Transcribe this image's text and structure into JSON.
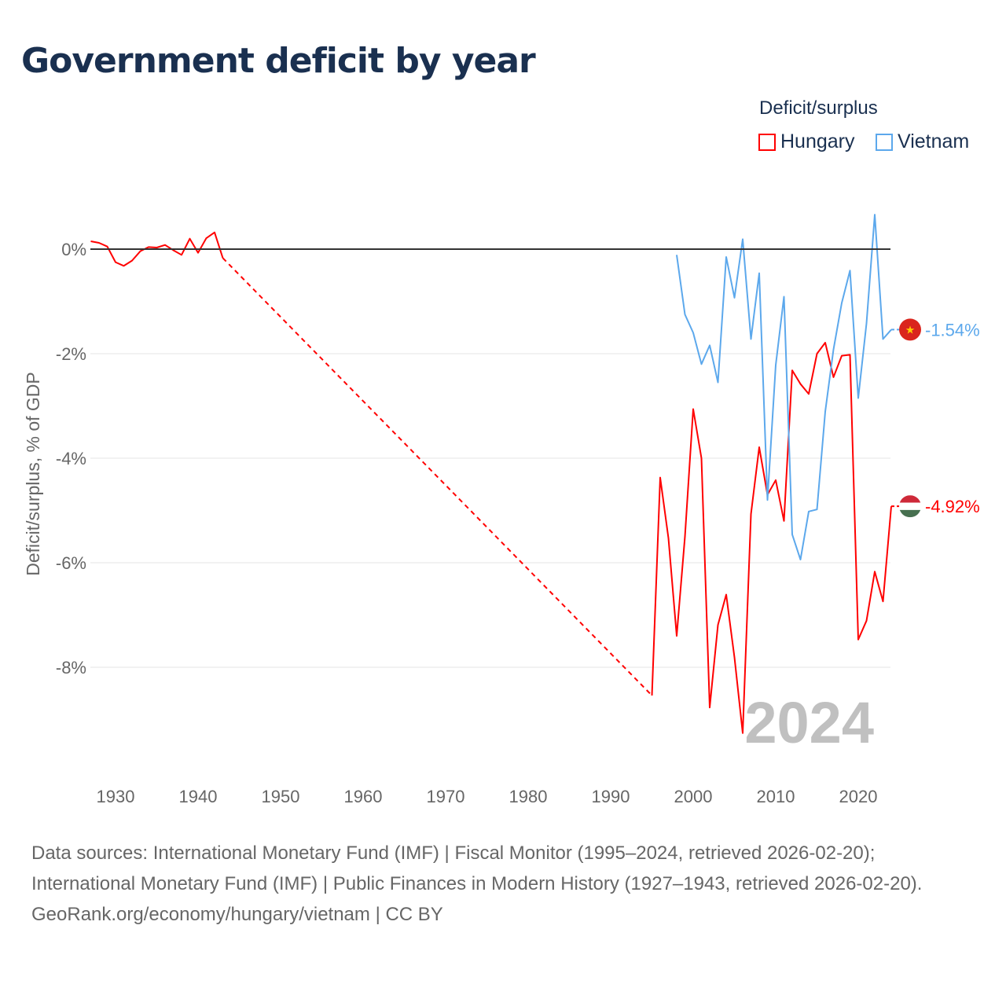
{
  "title": "Government deficit by year",
  "legend": {
    "title": "Deficit/surplus",
    "items": [
      {
        "name": "Hungary",
        "color": "#ff0000"
      },
      {
        "name": "Vietnam",
        "color": "#5ca8ec"
      }
    ]
  },
  "chart_data": {
    "type": "line",
    "title": "Government deficit by year",
    "xlabel": "",
    "ylabel": "Deficit/surplus, % of GDP",
    "xlim": [
      1927,
      2024
    ],
    "ylim": [
      -10,
      0.9
    ],
    "x_ticks": [
      1930,
      1940,
      1950,
      1960,
      1970,
      1980,
      1990,
      2000,
      2010,
      2020
    ],
    "y_ticks": [
      {
        "v": 0,
        "label": "0%"
      },
      {
        "v": -2,
        "label": "-2%"
      },
      {
        "v": -4,
        "label": "-4%"
      },
      {
        "v": -6,
        "label": "-6%"
      },
      {
        "v": -8,
        "label": "-8%"
      }
    ],
    "watermark_year": "2024",
    "series": [
      {
        "name": "Hungary",
        "color": "#ff0000",
        "end_label": "-4.92%",
        "gap": [
          1943,
          1995
        ],
        "x": [
          1927,
          1928,
          1929,
          1930,
          1931,
          1932,
          1933,
          1934,
          1935,
          1936,
          1937,
          1938,
          1939,
          1940,
          1941,
          1942,
          1943,
          1995,
          1996,
          1997,
          1998,
          1999,
          2000,
          2001,
          2002,
          2003,
          2004,
          2005,
          2006,
          2007,
          2008,
          2009,
          2010,
          2011,
          2012,
          2013,
          2014,
          2015,
          2016,
          2017,
          2018,
          2019,
          2020,
          2021,
          2022,
          2023,
          2024
        ],
        "y": [
          0.15,
          0.12,
          0.05,
          -0.25,
          -0.32,
          -0.22,
          -0.04,
          0.04,
          0.03,
          0.08,
          -0.02,
          -0.11,
          0.2,
          -0.07,
          0.21,
          0.32,
          -0.17,
          -8.54,
          -4.37,
          -5.53,
          -7.4,
          -5.5,
          -3.06,
          -4.0,
          -8.77,
          -7.19,
          -6.61,
          -7.81,
          -9.26,
          -5.07,
          -3.79,
          -4.7,
          -4.42,
          -5.2,
          -2.32,
          -2.58,
          -2.77,
          -2.0,
          -1.79,
          -2.45,
          -2.04,
          -2.02,
          -7.47,
          -7.11,
          -6.17,
          -6.74,
          -4.92
        ]
      },
      {
        "name": "Vietnam",
        "color": "#5ca8ec",
        "end_label": "-1.54%",
        "x": [
          1998,
          1999,
          2000,
          2001,
          2002,
          2003,
          2004,
          2005,
          2006,
          2007,
          2008,
          2009,
          2010,
          2011,
          2012,
          2013,
          2014,
          2015,
          2016,
          2017,
          2018,
          2019,
          2020,
          2021,
          2022,
          2023,
          2024
        ],
        "y": [
          -0.11,
          -1.25,
          -1.6,
          -2.2,
          -1.84,
          -2.55,
          -0.15,
          -0.93,
          0.19,
          -1.72,
          -0.46,
          -4.8,
          -2.22,
          -0.91,
          -5.46,
          -5.94,
          -5.02,
          -4.98,
          -3.11,
          -1.92,
          -1.03,
          -0.41,
          -2.85,
          -1.42,
          0.66,
          -1.72,
          -1.54
        ]
      }
    ]
  },
  "footer": {
    "sources": "Data sources: International Monetary Fund (IMF) | Fiscal Monitor (1995–2024, retrieved 2026-02-20); International Monetary Fund (IMF) | Public Finances in Modern History (1927–1943, retrieved 2026-02-20).",
    "credit": "GeoRank.org/economy/hungary/vietnam | CC BY"
  }
}
